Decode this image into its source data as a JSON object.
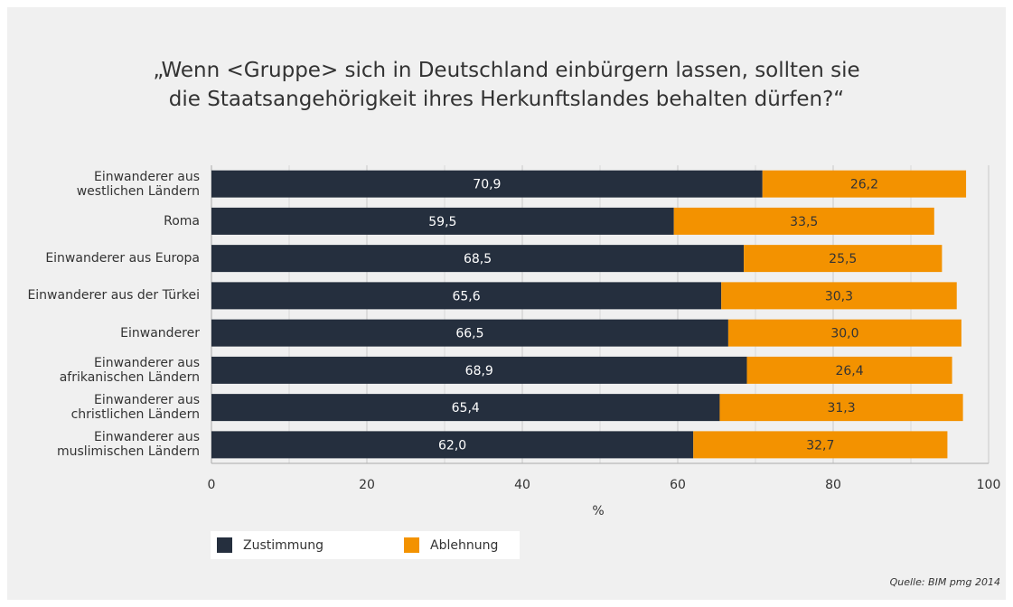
{
  "chart_data": {
    "type": "stacked-barh",
    "title": "„Wenn <Gruppe> sich in Deutschland einbürgern lassen, sollten sie\ndie Staatsangehörigkeit ihres Herkunftslandes behalten dürfen?“",
    "categories": [
      "Einwanderer aus\nwestlichen Ländern",
      "Roma",
      "Einwanderer aus Europa",
      "Einwanderer aus der Türkei",
      "Einwanderer",
      "Einwanderer aus\nafrikanischen Ländern",
      "Einwanderer aus\nchristlichen Ländern",
      "Einwanderer aus\nmuslimischen Ländern"
    ],
    "series": [
      {
        "name": "Zustimmung",
        "color": "#252f3e",
        "values": [
          70.9,
          59.5,
          68.5,
          65.6,
          66.5,
          68.9,
          65.4,
          62.0
        ],
        "value_labels": [
          "70,9",
          "59,5",
          "68,5",
          "65,6",
          "66,5",
          "68,9",
          "65,4",
          "62,0"
        ]
      },
      {
        "name": "Ablehnung",
        "color": "#f39200",
        "values": [
          26.2,
          33.5,
          25.5,
          30.3,
          30.0,
          26.4,
          31.3,
          32.7
        ],
        "value_labels": [
          "26,2",
          "33,5",
          "25,5",
          "30,3",
          "30,0",
          "26,4",
          "31,3",
          "32,7"
        ]
      }
    ],
    "xlabel": "%",
    "xlim": [
      0,
      100
    ],
    "xticks": [
      0,
      20,
      40,
      60,
      80,
      100
    ],
    "minor_xticks": [
      10,
      30,
      50,
      70,
      90
    ],
    "grid": true,
    "source": "Quelle: BIM pmg 2014"
  }
}
